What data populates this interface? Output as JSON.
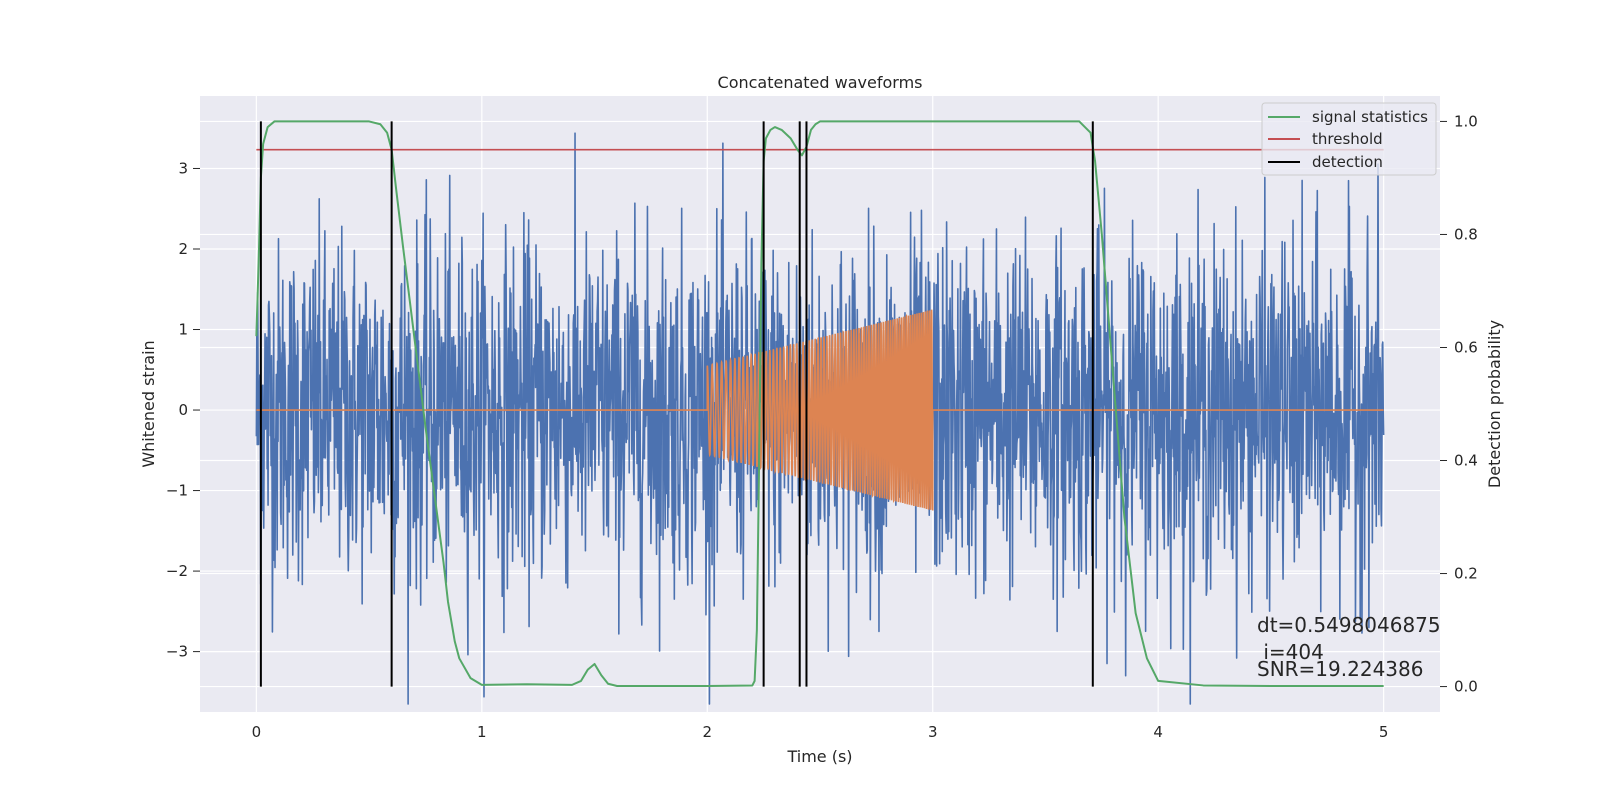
{
  "chart_data": {
    "type": "line",
    "title": "Concatenated waveforms",
    "xlabel": "Time (s)",
    "ylabel_left": "Whitened strain",
    "ylabel_right": "Detection probability",
    "xlim": [
      -0.25,
      5.25
    ],
    "ylim_left": [
      -3.75,
      3.9
    ],
    "ylim_right": [
      -0.045,
      1.045
    ],
    "xticks": [
      0,
      1,
      2,
      3,
      4,
      5
    ],
    "xtick_labels": [
      "0",
      "1",
      "2",
      "3",
      "4",
      "5"
    ],
    "yticks_left": [
      -3,
      -2,
      -1,
      0,
      1,
      2,
      3
    ],
    "ytick_labels_left": [
      "−3",
      "−2",
      "−1",
      "0",
      "1",
      "2",
      "3"
    ],
    "yticks_right": [
      0.0,
      0.2,
      0.4,
      0.6,
      0.8,
      1.0
    ],
    "ytick_labels_right": [
      "0.0",
      "0.2",
      "0.4",
      "0.6",
      "0.8",
      "1.0"
    ],
    "grid": true,
    "legend_position": "top-right",
    "colors": {
      "background": "#eaeaf2",
      "grid": "#ffffff",
      "strain": "#4c72b0",
      "template": "#dd8452",
      "signal_statistics": "#55a868",
      "threshold": "#c44e52",
      "detection": "#000000"
    },
    "series": [
      {
        "name": "signal statistics",
        "axis": "right",
        "x": [
          0.0,
          0.01,
          0.02,
          0.03,
          0.05,
          0.08,
          0.12,
          0.2,
          0.3,
          0.45,
          0.5,
          0.55,
          0.58,
          0.6,
          0.62,
          0.65,
          0.7,
          0.75,
          0.8,
          0.83,
          0.85,
          0.88,
          0.9,
          0.95,
          1.0,
          1.2,
          1.4,
          1.44,
          1.47,
          1.5,
          1.53,
          1.56,
          1.6,
          1.8,
          2.0,
          2.2,
          2.21,
          2.22,
          2.23,
          2.24,
          2.25,
          2.26,
          2.28,
          2.3,
          2.33,
          2.37,
          2.4,
          2.42,
          2.44,
          2.46,
          2.48,
          2.5,
          2.6,
          3.0,
          3.5,
          3.65,
          3.7,
          3.72,
          3.75,
          3.8,
          3.85,
          3.9,
          3.95,
          4.0,
          4.2,
          4.5,
          5.0
        ],
        "values": [
          0.62,
          0.75,
          0.9,
          0.96,
          0.99,
          1.0,
          1.0,
          1.0,
          1.0,
          1.0,
          1.0,
          0.995,
          0.98,
          0.95,
          0.88,
          0.78,
          0.62,
          0.46,
          0.31,
          0.22,
          0.15,
          0.08,
          0.05,
          0.015,
          0.003,
          0.004,
          0.003,
          0.01,
          0.03,
          0.04,
          0.02,
          0.005,
          0.001,
          0.001,
          0.001,
          0.002,
          0.01,
          0.1,
          0.4,
          0.75,
          0.93,
          0.97,
          0.985,
          0.99,
          0.985,
          0.97,
          0.95,
          0.94,
          0.955,
          0.985,
          0.995,
          1.0,
          1.0,
          1.0,
          1.0,
          1.0,
          0.98,
          0.93,
          0.8,
          0.55,
          0.3,
          0.13,
          0.05,
          0.01,
          0.002,
          0.001,
          0.001
        ]
      },
      {
        "name": "threshold",
        "axis": "right",
        "x": [
          0.0,
          5.0
        ],
        "values": [
          0.95,
          0.95
        ]
      },
      {
        "name": "detection",
        "axis": "right",
        "type": "vlines",
        "x": [
          0.02,
          0.6,
          2.25,
          2.41,
          2.44,
          3.71
        ],
        "y_range": [
          0.0,
          1.0
        ]
      },
      {
        "name": "",
        "axis": "left",
        "type": "noise",
        "x_range": [
          0.0,
          5.0
        ],
        "rms": 1.05,
        "max_abs": 3.65
      },
      {
        "name": "",
        "axis": "left",
        "type": "chirp",
        "x_range": [
          2.0,
          3.0
        ],
        "amplitude_start": 0.55,
        "amplitude_end": 1.25,
        "frequency_start_hz": 45,
        "frequency_end_hz": 110,
        "baseline": 0
      }
    ],
    "annotations": [
      "dt=0.5498046875",
      " i=404",
      "SNR=19.224386"
    ]
  }
}
